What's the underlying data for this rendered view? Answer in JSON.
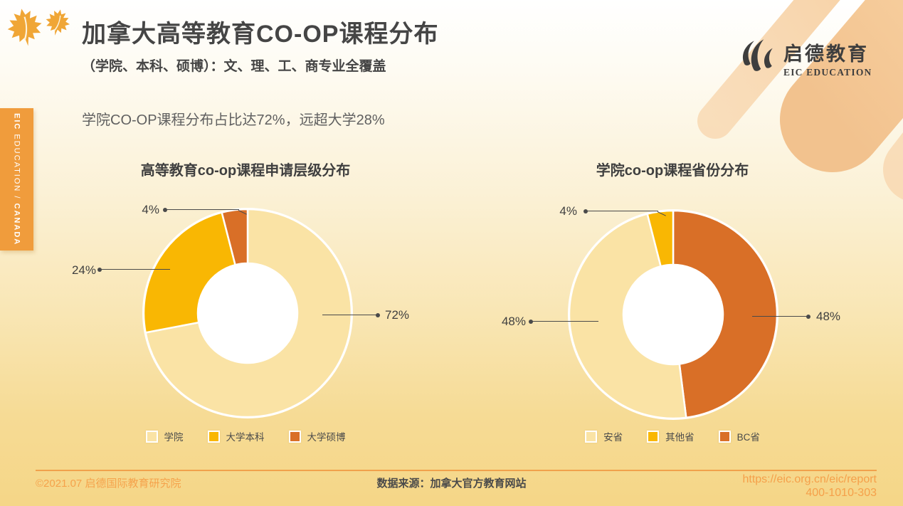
{
  "header": {
    "title": "加拿大高等教育CO-OP课程分布",
    "subtitle": "（学院、本科、硕博）：文、理、工、商专业全覆盖"
  },
  "brand": {
    "name": "启德教育",
    "subname": "EIC EDUCATION"
  },
  "side_tab": {
    "org": "EIC",
    "middle": " EDUCATION / ",
    "region": "CANADA"
  },
  "intro_text": "学院CO-OP课程分布占比达72%，远超大学28%",
  "chart_data": [
    {
      "type": "pie",
      "subtype": "donut",
      "title": "高等教育co-op课程申请层级分布",
      "categories": [
        "学院",
        "大学本科",
        "大学硕博"
      ],
      "values": [
        72,
        24,
        4
      ],
      "unit": "%",
      "start_angle_deg": 0,
      "direction": "clockwise",
      "inner_radius_ratio": 0.48,
      "segments": [
        {
          "label": "学院",
          "value": 72,
          "color": "#FAE3A5"
        },
        {
          "label": "大学本科",
          "value": 24,
          "color": "#F9B703"
        },
        {
          "label": "大学硕博",
          "value": 4,
          "color": "#D96F27"
        }
      ],
      "legend_position": "bottom",
      "legend": [
        {
          "label": "学院",
          "color": "#FAE3A5"
        },
        {
          "label": "大学本科",
          "color": "#F9B703"
        },
        {
          "label": "大学硕博",
          "color": "#D96F27"
        }
      ],
      "callouts": [
        {
          "text": "4%",
          "target": "大学硕博"
        },
        {
          "text": "24%",
          "target": "大学本科"
        },
        {
          "text": "72%",
          "target": "学院"
        }
      ]
    },
    {
      "type": "pie",
      "subtype": "donut",
      "title": "学院co-op课程省份分布",
      "categories": [
        "安省",
        "其他省",
        "BC省"
      ],
      "values": [
        48,
        4,
        48
      ],
      "unit": "%",
      "start_angle_deg": 0,
      "direction": "clockwise",
      "inner_radius_ratio": 0.48,
      "segments": [
        {
          "label": "BC省",
          "value": 48,
          "color": "#D96F27"
        },
        {
          "label": "安省",
          "value": 48,
          "color": "#FAE3A5"
        },
        {
          "label": "其他省",
          "value": 4,
          "color": "#F9B703"
        }
      ],
      "legend_position": "bottom",
      "legend": [
        {
          "label": "安省",
          "color": "#FAE3A5"
        },
        {
          "label": "其他省",
          "color": "#F9B703"
        },
        {
          "label": "BC省",
          "color": "#D96F27"
        }
      ],
      "callouts": [
        {
          "text": "4%",
          "target": "其他省"
        },
        {
          "text": "48%",
          "target": "安省"
        },
        {
          "text": "48%",
          "target": "BC省"
        }
      ]
    }
  ],
  "footer": {
    "copyright": "©2021.07 启德国际教育研究院",
    "source": "数据来源：加拿大官方教育网站",
    "url": "https://eic.org.cn/eic/report",
    "phone": "400-1010-303"
  },
  "colors": {
    "accent_orange": "#F09C3C",
    "footer_orange": "#F5A04A",
    "decor_peach": "#F7CE9F",
    "text_dark": "#454545",
    "leader_line": "#4A4A4A"
  }
}
